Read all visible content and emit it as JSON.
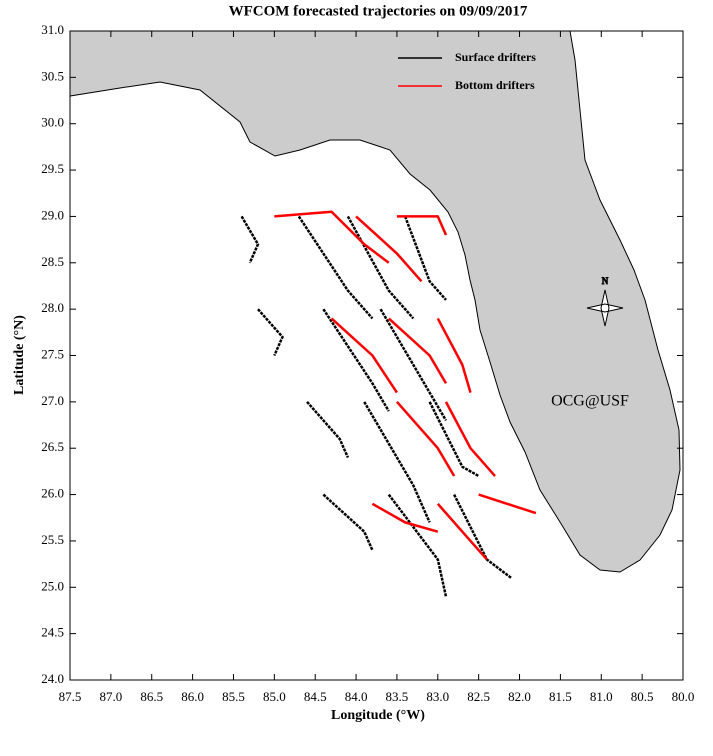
{
  "chart_data": {
    "type": "map",
    "title": "WFCOM forecasted trajectories on 09/09/2017",
    "x_label": "Longitude (°W)",
    "y_label": "Latitude (°N)",
    "annotation": "OCG@USF",
    "annotation_color": "#ff0000",
    "land_color": "#cccccc",
    "xlim": [
      87.5,
      80.0
    ],
    "ylim": [
      24.0,
      31.0
    ],
    "xticks": [
      87.5,
      {
        "value": 87,
        "label": "87.0"
      },
      86.5,
      {
        "value": 86,
        "label": "86.0"
      },
      85.5,
      {
        "value": 85,
        "label": "85.0"
      },
      84.5,
      {
        "value": 84,
        "label": "84.0"
      },
      83.5,
      {
        "value": 83,
        "label": "83.0"
      },
      82.5,
      {
        "value": 82,
        "label": "82.0"
      },
      81.5,
      {
        "value": 81,
        "label": "81.0"
      },
      80.5,
      {
        "value": 80,
        "label": "80.0"
      }
    ],
    "yticks": [
      {
        "value": 24,
        "label": "24.0"
      },
      24.5,
      {
        "value": 25,
        "label": "25.0"
      },
      25.5,
      {
        "value": 26,
        "label": "26.0"
      },
      26.5,
      {
        "value": 27,
        "label": "27.0"
      },
      27.5,
      {
        "value": 28,
        "label": "28.0"
      },
      28.5,
      {
        "value": 29,
        "label": "29.0"
      },
      29.5,
      {
        "value": 30,
        "label": "30.0"
      },
      30.5,
      {
        "value": 31,
        "label": "31.0"
      }
    ],
    "series": [
      {
        "name": "Surface drifters",
        "color": "#000000",
        "tracks": [
          {
            "x": [
              85.4,
              85.2,
              85.3
            ],
            "y": [
              29.0,
              28.7,
              28.5
            ]
          },
          {
            "x": [
              84.7,
              84.1,
              83.8
            ],
            "y": [
              29.0,
              28.2,
              27.9
            ]
          },
          {
            "x": [
              84.1,
              83.6,
              83.3
            ],
            "y": [
              29.0,
              28.2,
              27.9
            ]
          },
          {
            "x": [
              83.4,
              83.1,
              82.9
            ],
            "y": [
              29.0,
              28.3,
              28.1
            ]
          },
          {
            "x": [
              85.2,
              84.9,
              85.0
            ],
            "y": [
              28.0,
              27.7,
              27.5
            ]
          },
          {
            "x": [
              84.4,
              83.8,
              83.6
            ],
            "y": [
              28.0,
              27.2,
              26.9
            ]
          },
          {
            "x": [
              83.7,
              83.1,
              82.9
            ],
            "y": [
              28.0,
              27.1,
              26.8
            ]
          },
          {
            "x": [
              84.6,
              84.2,
              84.1
            ],
            "y": [
              27.0,
              26.6,
              26.4
            ]
          },
          {
            "x": [
              83.9,
              83.3,
              83.1
            ],
            "y": [
              27.0,
              26.1,
              25.7
            ]
          },
          {
            "x": [
              83.1,
              82.7,
              82.5
            ],
            "y": [
              27.0,
              26.3,
              26.2
            ]
          },
          {
            "x": [
              84.4,
              83.9,
              83.8
            ],
            "y": [
              26.0,
              25.6,
              25.4
            ]
          },
          {
            "x": [
              83.6,
              83.0,
              82.9
            ],
            "y": [
              26.0,
              25.3,
              24.9
            ]
          },
          {
            "x": [
              82.8,
              82.4,
              82.1
            ],
            "y": [
              26.0,
              25.3,
              25.1
            ]
          }
        ]
      },
      {
        "name": "Bottom drifters",
        "color": "#ff0000",
        "tracks": [
          {
            "x": [
              85.0,
              84.3,
              83.9,
              83.6
            ],
            "y": [
              29.0,
              29.05,
              28.7,
              28.5
            ]
          },
          {
            "x": [
              84.0,
              83.5,
              83.2
            ],
            "y": [
              29.0,
              28.6,
              28.3
            ]
          },
          {
            "x": [
              83.5,
              83.0,
              82.9
            ],
            "y": [
              29.0,
              29.0,
              28.8
            ]
          },
          {
            "x": [
              84.3,
              83.8,
              83.5
            ],
            "y": [
              27.9,
              27.5,
              27.1
            ]
          },
          {
            "x": [
              83.6,
              83.1,
              82.9
            ],
            "y": [
              27.9,
              27.5,
              27.2
            ]
          },
          {
            "x": [
              83.0,
              82.7,
              82.6
            ],
            "y": [
              27.9,
              27.4,
              27.1
            ]
          },
          {
            "x": [
              83.5,
              83.0,
              82.8
            ],
            "y": [
              27.0,
              26.5,
              26.2
            ]
          },
          {
            "x": [
              82.9,
              82.6,
              82.3
            ],
            "y": [
              27.0,
              26.5,
              26.2
            ]
          },
          {
            "x": [
              83.8,
              83.4,
              83.0
            ],
            "y": [
              25.9,
              25.7,
              25.6
            ]
          },
          {
            "x": [
              83.0,
              82.6,
              82.4
            ],
            "y": [
              25.9,
              25.5,
              25.3
            ]
          },
          {
            "x": [
              82.5,
              81.8
            ],
            "y": [
              26.0,
              25.8
            ]
          }
        ]
      }
    ]
  }
}
